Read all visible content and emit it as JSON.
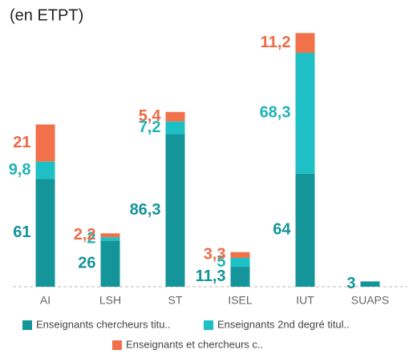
{
  "chart_data": {
    "type": "stacked-bar",
    "title": "(en ETPT)",
    "categories": [
      "AI",
      "LSH",
      "ST",
      "ISEL",
      "IUT",
      "SUAPS"
    ],
    "ylim": [
      0,
      145
    ],
    "series": [
      {
        "name": "Enseignants chercheurs titu..",
        "color": "#14959a",
        "values": [
          61,
          26,
          86.3,
          11.3,
          64,
          3
        ],
        "value_labels": [
          "61",
          "26",
          "86,3",
          "11,3",
          "64",
          "3"
        ]
      },
      {
        "name": "Enseignants 2nd degré titul..",
        "color": "#1ebfc5",
        "values": [
          9.8,
          2,
          7.2,
          5,
          68.3,
          null
        ],
        "value_labels": [
          "9,8",
          "2",
          "7,2",
          "5",
          "68,3",
          null
        ]
      },
      {
        "name": "Enseignants et chercheurs c..",
        "color": "#f0714a",
        "values": [
          21,
          2.2,
          5.4,
          3.3,
          11.2,
          null
        ],
        "value_labels": [
          "21",
          "2,2",
          "5,4",
          "3,3",
          "11,2",
          null
        ]
      }
    ]
  }
}
